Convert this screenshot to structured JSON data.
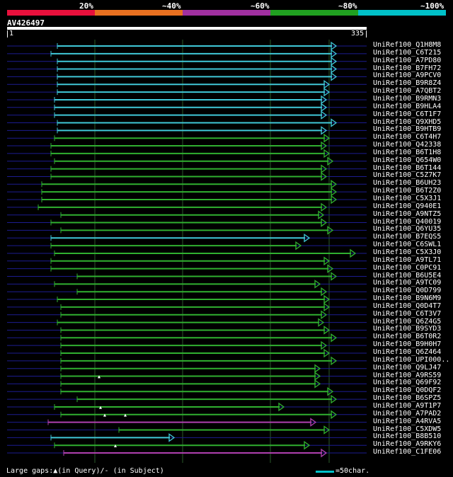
{
  "scale": {
    "labels": [
      "20%",
      "~40%",
      "~60%",
      "~80%",
      "~100%"
    ],
    "colors": [
      "#e8103c",
      "#e87020",
      "#a030a0",
      "#20a020",
      "#00c0c8"
    ]
  },
  "query": {
    "name": "AV426497",
    "start": "1",
    "end": "335"
  },
  "colors": {
    "cyan": "#40c8d8",
    "green": "#30b030",
    "purple": "#b040b0",
    "row_line": "#1c1c90",
    "grid": "#2a5a2a"
  },
  "hits": [
    {
      "label": "UniRef100_Q1H8M8",
      "color": "cyan"
    },
    {
      "label": "UniRef100_C6T215",
      "color": "cyan"
    },
    {
      "label": "UniRef100_A7PD80",
      "color": "cyan"
    },
    {
      "label": "UniRef100_B7FH72",
      "color": "cyan"
    },
    {
      "label": "UniRef100_A9PCV0",
      "color": "cyan"
    },
    {
      "label": "UniRef100_B9R8Z4",
      "color": "cyan"
    },
    {
      "label": "UniRef100_A7QBT2",
      "color": "cyan"
    },
    {
      "label": "UniRef100_B9RMN3",
      "color": "cyan"
    },
    {
      "label": "UniRef100_B9HLA4",
      "color": "cyan"
    },
    {
      "label": "UniRef100_C6T1F7",
      "color": "cyan"
    },
    {
      "label": "UniRef100_Q9XHD5",
      "color": "cyan"
    },
    {
      "label": "UniRef100_B9HTB9",
      "color": "cyan"
    },
    {
      "label": "UniRef100_C6T4H7",
      "color": "green"
    },
    {
      "label": "UniRef100_Q42338",
      "color": "green"
    },
    {
      "label": "UniRef100_B6T1H8",
      "color": "green"
    },
    {
      "label": "UniRef100_Q654W0",
      "color": "green"
    },
    {
      "label": "UniRef100_B6T144",
      "color": "green"
    },
    {
      "label": "UniRef100_C5Z7K7",
      "color": "green"
    },
    {
      "label": "UniRef100_B6UH23",
      "color": "green"
    },
    {
      "label": "UniRef100_B6T2Z0",
      "color": "green"
    },
    {
      "label": "UniRef100_C5X3J1",
      "color": "green"
    },
    {
      "label": "UniRef100_Q940E1",
      "color": "green"
    },
    {
      "label": "UniRef100_A9NTZ5",
      "color": "green"
    },
    {
      "label": "UniRef100_Q40019",
      "color": "green"
    },
    {
      "label": "UniRef100_Q6YU35",
      "color": "green"
    },
    {
      "label": "UniRef100_B7EQS5",
      "color": "cyan"
    },
    {
      "label": "UniRef100_C6SWL1",
      "color": "green"
    },
    {
      "label": "UniRef100_C5X3J0",
      "color": "green"
    },
    {
      "label": "UniRef100_A9TL71",
      "color": "green"
    },
    {
      "label": "UniRef100_C0PC91",
      "color": "green"
    },
    {
      "label": "UniRef100_B6U5E4",
      "color": "green"
    },
    {
      "label": "UniRef100_A9TC09",
      "color": "green"
    },
    {
      "label": "UniRef100_Q0D799",
      "color": "green"
    },
    {
      "label": "UniRef100_B9N6M9",
      "color": "green"
    },
    {
      "label": "UniRef100_Q0D4T7",
      "color": "green"
    },
    {
      "label": "UniRef100_C6T3V7",
      "color": "green"
    },
    {
      "label": "UniRef100_Q6Z4G5",
      "color": "green"
    },
    {
      "label": "UniRef100_B9SYD3",
      "color": "green"
    },
    {
      "label": "UniRef100_B6T0R2",
      "color": "green"
    },
    {
      "label": "UniRef100_B9H0H7",
      "color": "green"
    },
    {
      "label": "UniRef100_Q6Z464",
      "color": "green"
    },
    {
      "label": "UniRef100_UPI000..",
      "color": "green"
    },
    {
      "label": "UniRef100_Q9LJ47",
      "color": "green"
    },
    {
      "label": "UniRef100_A9RS59",
      "color": "green"
    },
    {
      "label": "UniRef100_Q69F92",
      "color": "green"
    },
    {
      "label": "UniRef100_Q0DQF2",
      "color": "green"
    },
    {
      "label": "UniRef100_B6SPZ5",
      "color": "green"
    },
    {
      "label": "UniRef100_A9T1P7",
      "color": "green"
    },
    {
      "label": "UniRef100_A7PAD2",
      "color": "green"
    },
    {
      "label": "UniRef100_A4RVA5",
      "color": "purple"
    },
    {
      "label": "UniRef100_C5XDW5",
      "color": "green"
    },
    {
      "label": "UniRef100_B8B510",
      "color": "cyan"
    },
    {
      "label": "UniRef100_A9RKY6",
      "color": "green"
    },
    {
      "label": "UniRef100_C1FE06",
      "color": "purple"
    }
  ],
  "footer": {
    "gaps_prefix": "Large gaps:",
    "gaps_query": "(in Query)/",
    "gaps_subject": "(in Subject)",
    "legend": "=50char."
  }
}
